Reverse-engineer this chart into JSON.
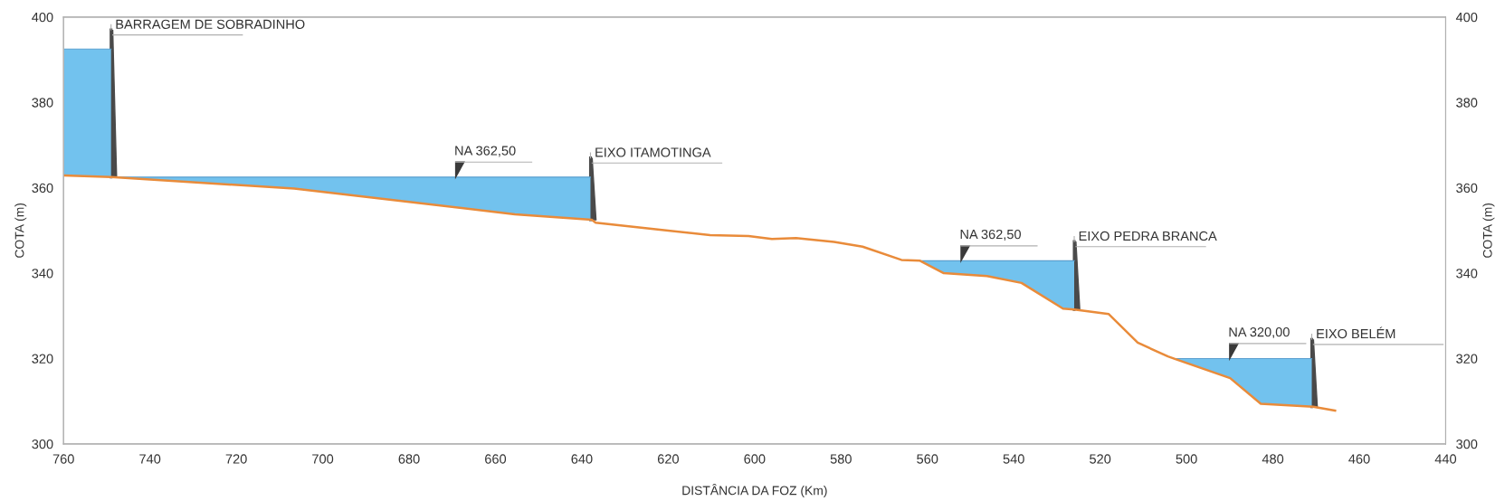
{
  "chart_data": {
    "type": "line",
    "xlabel": "DISTÂNCIA DA FOZ (Km)",
    "ylabel": "COTA (m)",
    "y2label": "COTA (m)",
    "xlim": [
      760,
      440
    ],
    "xticks": [
      760,
      740,
      720,
      700,
      680,
      660,
      640,
      620,
      600,
      580,
      560,
      540,
      520,
      500,
      480,
      460,
      440
    ],
    "ylim": [
      300,
      400
    ],
    "yticks": [
      300,
      320,
      340,
      360,
      380,
      400
    ],
    "y2lim": [
      300,
      400
    ],
    "y2ticks": [
      300,
      320,
      340,
      360,
      380,
      400
    ],
    "grid": false,
    "series": [
      {
        "type": "area",
        "color": "#72c2ee",
        "x": [
          760,
          749
        ],
        "values": [
          392.5,
          392.5
        ]
      },
      {
        "type": "area",
        "color": "#72c2ee",
        "x": [
          749,
          706.6,
          655.5,
          638
        ],
        "values": [
          362.5,
          362.5,
          362.5,
          362.5
        ]
      },
      {
        "type": "area",
        "color": "#72c2ee",
        "x": [
          561.7,
          556.2,
          546.2,
          538.2,
          528.6,
          526
        ],
        "values": [
          342.9,
          342.9,
          342.9,
          342.9,
          342.9,
          342.9
        ]
      },
      {
        "type": "area",
        "color": "#72c2ee",
        "x": [
          503,
          489.9,
          482.8,
          471
        ],
        "values": [
          320,
          320,
          320,
          320
        ]
      },
      {
        "color": "#e98b3a",
        "x": [
          760,
          749,
          706.6,
          655.5,
          637.7,
          636.8,
          610.3,
          601.4,
          596,
          590.4,
          581.6,
          575,
          566,
          561.7,
          556.2,
          546.2,
          538.2,
          528.6,
          526,
          518,
          511.3,
          504.3,
          502.7,
          489.9,
          482.8,
          470.7,
          465.6
        ],
        "values": [
          362.9,
          362.5,
          359.8,
          353.8,
          352.5,
          351.8,
          348.9,
          348.7,
          348,
          348.2,
          347.3,
          346.2,
          343.1,
          342.9,
          340,
          339.3,
          337.7,
          331.7,
          331.5,
          330.4,
          323.7,
          320.5,
          319.9,
          315.4,
          309.4,
          308.7,
          307.8
        ]
      }
    ],
    "ref_lines": [
      {
        "axis": "x",
        "value": 749,
        "label": "BARRAGEM DE SOBRADINHO",
        "color": "#4a4a4a"
      },
      {
        "axis": "x",
        "value": 638,
        "label": "EIXO ITAMOTINGA",
        "color": "#4a4a4a"
      },
      {
        "axis": "x",
        "value": 526,
        "label": "EIXO PEDRA BRANCA",
        "color": "#4a4a4a"
      },
      {
        "axis": "x",
        "value": 471,
        "label": "EIXO BELÉM",
        "color": "#4a4a4a"
      }
    ],
    "annotations": [
      {
        "text": "NA 362,50",
        "x": 669.2,
        "y": 362.5
      },
      {
        "text": "NA 362,50",
        "x": 552.2,
        "y": 342.9
      },
      {
        "text": "NA 320,00",
        "x": 490,
        "y": 320
      }
    ]
  }
}
